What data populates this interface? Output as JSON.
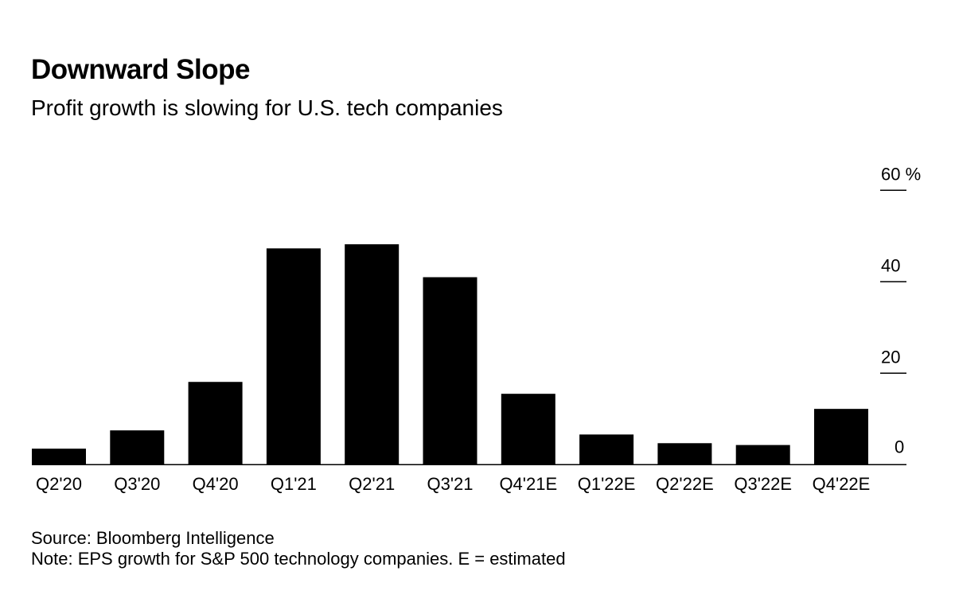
{
  "chart_data": {
    "type": "bar",
    "title": "Downward Slope",
    "subtitle": "Profit growth is slowing for U.S. tech companies",
    "categories": [
      "Q2'20",
      "Q3'20",
      "Q4'20",
      "Q1'21",
      "Q2'21",
      "Q3'21",
      "Q4'21E",
      "Q1'22E",
      "Q2'22E",
      "Q3'22E",
      "Q4'22E"
    ],
    "values": [
      3.5,
      7.5,
      18.1,
      47.3,
      48.2,
      41.0,
      15.5,
      6.6,
      4.7,
      4.3,
      12.2
    ],
    "ylim": [
      0,
      60
    ],
    "yticks": [
      0,
      20,
      40,
      60
    ],
    "ytick_labels": [
      "0",
      "20",
      "40",
      "60 %"
    ],
    "xlabel": "",
    "ylabel": "",
    "bar_color": "#000000",
    "axis_position": "right",
    "source": "Source: Bloomberg Intelligence",
    "note": "Note: EPS growth for S&P 500 technology companies. E = estimated"
  }
}
